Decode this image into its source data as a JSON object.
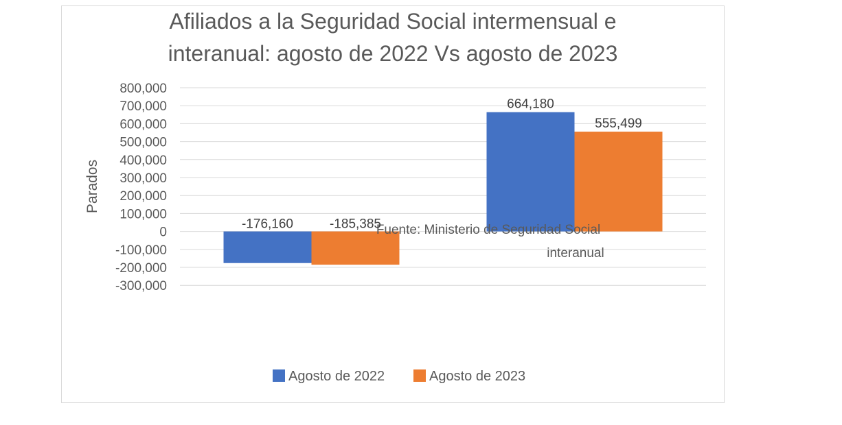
{
  "chart_data": {
    "type": "bar",
    "title_lines": [
      "Afiliados a la Seguridad Social intermensual e",
      "interanual: agosto de 2022 Vs agosto de 2023"
    ],
    "ylabel": "Parados",
    "xlabel": "",
    "categories": [
      "Fuente: Ministerio de Seguridad Social",
      "interanual"
    ],
    "series": [
      {
        "name": "Agosto de 2022",
        "color": "#4472c4",
        "values": [
          -176160,
          664180
        ]
      },
      {
        "name": "Agosto de 2023",
        "color": "#ed7d31",
        "values": [
          -185385,
          555499
        ]
      }
    ],
    "data_labels": [
      [
        "-176,160",
        "664,180"
      ],
      [
        "-185,385",
        "555,499"
      ]
    ],
    "ylim": [
      -300000,
      800000
    ],
    "yticks": [
      800000,
      700000,
      600000,
      500000,
      400000,
      300000,
      200000,
      100000,
      0,
      -100000,
      -200000,
      -300000
    ],
    "ytick_labels": [
      "800,000",
      "700,000",
      "600,000",
      "500,000",
      "400,000",
      "300,000",
      "200,000",
      "100,000",
      "0",
      "-100,000",
      "-200,000",
      "-300,000"
    ],
    "grid": true,
    "legend_position": "bottom"
  }
}
